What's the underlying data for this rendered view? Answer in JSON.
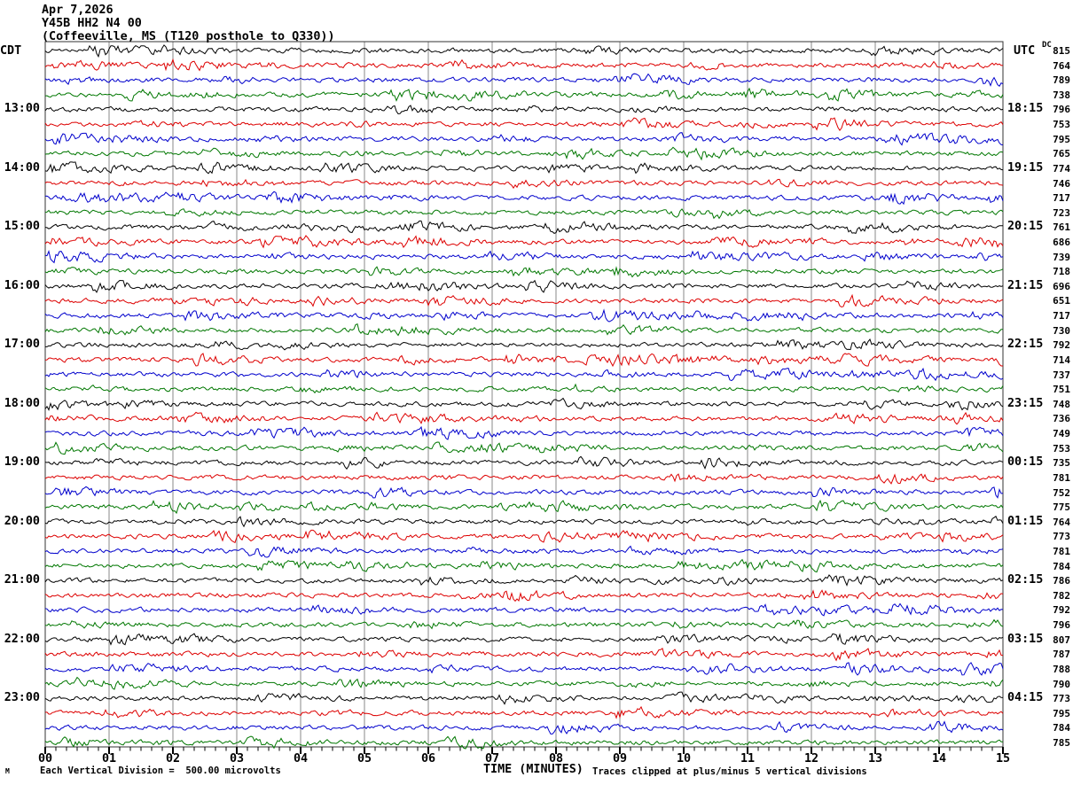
{
  "header": {
    "date": "Apr 7,2026",
    "station": "Y45B HH2 N4 00",
    "location": "(Coffeeville, MS (T120 posthole to Q330))"
  },
  "axes": {
    "left_label": "CDT",
    "right_label": "UTC",
    "dc_header": "DC",
    "x_title": "TIME (MINUTES)",
    "x_ticks": [
      "00",
      "01",
      "02",
      "03",
      "04",
      "05",
      "06",
      "07",
      "08",
      "09",
      "10",
      "11",
      "12",
      "13",
      "14",
      "15"
    ]
  },
  "footer": {
    "watermark": "M",
    "scale_note": "Each Vertical Division =  500.00 microvolts",
    "clip_note": "Traces clipped at plus/minus 5 vertical divisions"
  },
  "chart_data": {
    "type": "line",
    "subtype": "helicorder-seismogram",
    "title": "Y45B HH2 N4 00 (Coffeeville, MS (T120 posthole to Q330))",
    "date": "Apr 7,2026",
    "xlabel": "TIME (MINUTES)",
    "x_range_minutes": [
      0,
      15
    ],
    "minutes_per_row": 15,
    "vertical_division_microvolts": 500.0,
    "clip_divisions": 5,
    "grid": true,
    "grid_color": "#8a8a8a",
    "trace_color_cycle": [
      "#000000",
      "#dd0000",
      "#0000cc",
      "#007700"
    ],
    "rows": [
      {
        "cdt": "",
        "utc": "",
        "dc": 815
      },
      {
        "cdt": "",
        "utc": "",
        "dc": 764
      },
      {
        "cdt": "",
        "utc": "",
        "dc": 789
      },
      {
        "cdt": "",
        "utc": "",
        "dc": 738
      },
      {
        "cdt": "13:00",
        "utc": "18:15",
        "dc": 796
      },
      {
        "cdt": "",
        "utc": "",
        "dc": 753
      },
      {
        "cdt": "",
        "utc": "",
        "dc": 795
      },
      {
        "cdt": "",
        "utc": "",
        "dc": 765
      },
      {
        "cdt": "14:00",
        "utc": "19:15",
        "dc": 774
      },
      {
        "cdt": "",
        "utc": "",
        "dc": 746
      },
      {
        "cdt": "",
        "utc": "",
        "dc": 717
      },
      {
        "cdt": "",
        "utc": "",
        "dc": 723
      },
      {
        "cdt": "15:00",
        "utc": "20:15",
        "dc": 761
      },
      {
        "cdt": "",
        "utc": "",
        "dc": 686
      },
      {
        "cdt": "",
        "utc": "",
        "dc": 739
      },
      {
        "cdt": "",
        "utc": "",
        "dc": 718
      },
      {
        "cdt": "16:00",
        "utc": "21:15",
        "dc": 696
      },
      {
        "cdt": "",
        "utc": "",
        "dc": 651
      },
      {
        "cdt": "",
        "utc": "",
        "dc": 717
      },
      {
        "cdt": "",
        "utc": "",
        "dc": 730
      },
      {
        "cdt": "17:00",
        "utc": "22:15",
        "dc": 792
      },
      {
        "cdt": "",
        "utc": "",
        "dc": 714
      },
      {
        "cdt": "",
        "utc": "",
        "dc": 737
      },
      {
        "cdt": "",
        "utc": "",
        "dc": 751
      },
      {
        "cdt": "18:00",
        "utc": "23:15",
        "dc": 748
      },
      {
        "cdt": "",
        "utc": "",
        "dc": 736
      },
      {
        "cdt": "",
        "utc": "",
        "dc": 749
      },
      {
        "cdt": "",
        "utc": "",
        "dc": 753
      },
      {
        "cdt": "19:00",
        "utc": "00:15",
        "dc": 735
      },
      {
        "cdt": "",
        "utc": "",
        "dc": 781
      },
      {
        "cdt": "",
        "utc": "",
        "dc": 752
      },
      {
        "cdt": "",
        "utc": "",
        "dc": 775
      },
      {
        "cdt": "20:00",
        "utc": "01:15",
        "dc": 764
      },
      {
        "cdt": "",
        "utc": "",
        "dc": 773
      },
      {
        "cdt": "",
        "utc": "",
        "dc": 781
      },
      {
        "cdt": "",
        "utc": "",
        "dc": 784
      },
      {
        "cdt": "21:00",
        "utc": "02:15",
        "dc": 786
      },
      {
        "cdt": "",
        "utc": "",
        "dc": 782
      },
      {
        "cdt": "",
        "utc": "",
        "dc": 792
      },
      {
        "cdt": "",
        "utc": "",
        "dc": 796
      },
      {
        "cdt": "22:00",
        "utc": "03:15",
        "dc": 807
      },
      {
        "cdt": "",
        "utc": "",
        "dc": 787
      },
      {
        "cdt": "",
        "utc": "",
        "dc": 788
      },
      {
        "cdt": "",
        "utc": "",
        "dc": 790
      },
      {
        "cdt": "23:00",
        "utc": "04:15",
        "dc": 773
      },
      {
        "cdt": "",
        "utc": "",
        "dc": 795
      },
      {
        "cdt": "",
        "utc": "",
        "dc": 784
      },
      {
        "cdt": "",
        "utc": "",
        "dc": 785
      }
    ]
  }
}
